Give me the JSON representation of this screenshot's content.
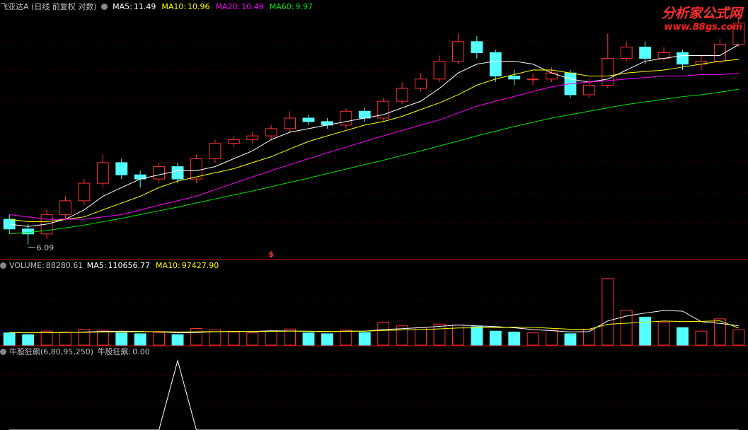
{
  "watermark": {
    "brand": "分析家公式网",
    "url": "www.88gs.com"
  },
  "chart_data": [
    {
      "type": "candlestick",
      "title": "飞亚达A (日线 前复权 对数)",
      "log_scale": true,
      "ylim": [
        5.9,
        12.6
      ],
      "up_color": "#ff3232",
      "down_color": "#54ffff",
      "marker": "$",
      "marker_index": 14,
      "low_label": 6.09,
      "low_index": 1,
      "open": [
        6.6,
        6.4,
        6.3,
        6.7,
        7.0,
        7.4,
        7.9,
        7.6,
        7.5,
        7.8,
        7.5,
        8.0,
        8.4,
        8.5,
        8.6,
        8.8,
        9.1,
        9.0,
        8.9,
        9.3,
        9.1,
        9.6,
        10.0,
        10.3,
        10.9,
        11.6,
        11.2,
        10.4,
        10.3,
        10.3,
        10.5,
        9.8,
        10.1,
        11.0,
        11.4,
        11.0,
        11.2,
        10.8,
        10.9,
        11.5
      ],
      "high": [
        6.7,
        6.5,
        6.8,
        7.1,
        7.5,
        8.1,
        8.0,
        7.7,
        7.9,
        7.9,
        8.1,
        8.5,
        8.6,
        8.7,
        8.9,
        9.3,
        9.2,
        9.1,
        9.4,
        9.4,
        9.7,
        10.2,
        10.5,
        11.1,
        11.9,
        11.8,
        11.3,
        10.6,
        10.5,
        10.7,
        10.6,
        10.3,
        11.9,
        11.6,
        11.6,
        11.4,
        11.3,
        11.1,
        11.7,
        12.6
      ],
      "low": [
        6.3,
        6.09,
        6.2,
        6.6,
        6.9,
        7.3,
        7.5,
        7.3,
        7.4,
        7.4,
        7.4,
        7.9,
        8.3,
        8.4,
        8.5,
        8.7,
        8.9,
        8.8,
        8.8,
        9.0,
        9.0,
        9.5,
        9.9,
        10.2,
        10.8,
        11.0,
        10.2,
        10.1,
        10.1,
        10.2,
        9.7,
        9.7,
        10.0,
        10.9,
        10.8,
        10.9,
        10.6,
        10.6,
        10.8,
        11.4
      ],
      "close": [
        6.4,
        6.3,
        6.7,
        7.0,
        7.4,
        7.9,
        7.6,
        7.5,
        7.8,
        7.5,
        8.0,
        8.4,
        8.5,
        8.6,
        8.8,
        9.1,
        9.0,
        8.9,
        9.3,
        9.1,
        9.6,
        10.0,
        10.3,
        10.9,
        11.6,
        11.2,
        10.4,
        10.3,
        10.3,
        10.5,
        9.8,
        10.1,
        11.0,
        11.4,
        11.0,
        11.2,
        10.8,
        10.9,
        11.5,
        12.3
      ],
      "series": [
        {
          "label": "MA5:",
          "current": 11.49,
          "color": "#ffffff",
          "values": [
            6.5,
            6.45,
            6.5,
            6.6,
            6.8,
            7.1,
            7.3,
            7.5,
            7.6,
            7.7,
            7.7,
            7.8,
            8.0,
            8.2,
            8.5,
            8.7,
            8.8,
            8.9,
            9.0,
            9.1,
            9.2,
            9.4,
            9.6,
            10.0,
            10.5,
            10.8,
            10.9,
            10.9,
            10.8,
            10.5,
            10.3,
            10.2,
            10.3,
            10.6,
            10.9,
            11.0,
            11.1,
            11.1,
            11.1,
            11.49
          ]
        },
        {
          "label": "MA10:",
          "current": 10.96,
          "color": "#ffff00",
          "values": [
            6.6,
            6.55,
            6.55,
            6.6,
            6.65,
            6.8,
            6.95,
            7.1,
            7.3,
            7.45,
            7.55,
            7.65,
            7.75,
            7.9,
            8.05,
            8.25,
            8.45,
            8.6,
            8.75,
            8.9,
            9.0,
            9.15,
            9.35,
            9.55,
            9.8,
            10.1,
            10.3,
            10.45,
            10.6,
            10.6,
            10.5,
            10.4,
            10.4,
            10.5,
            10.55,
            10.6,
            10.7,
            10.8,
            10.9,
            10.96
          ]
        },
        {
          "label": "MA20:",
          "current": 10.49,
          "color": "#ff00ff",
          "values": [
            6.7,
            6.65,
            6.6,
            6.6,
            6.6,
            6.65,
            6.7,
            6.8,
            6.9,
            7.0,
            7.1,
            7.25,
            7.4,
            7.55,
            7.7,
            7.85,
            8.0,
            8.15,
            8.3,
            8.45,
            8.6,
            8.75,
            8.9,
            9.05,
            9.25,
            9.45,
            9.6,
            9.75,
            9.9,
            10.05,
            10.15,
            10.2,
            10.25,
            10.3,
            10.35,
            10.4,
            10.4,
            10.45,
            10.45,
            10.49
          ]
        },
        {
          "label": "MA60:",
          "current": 9.97,
          "color": "#00e600",
          "values": [
            6.3,
            6.33,
            6.37,
            6.42,
            6.48,
            6.55,
            6.62,
            6.7,
            6.78,
            6.86,
            6.95,
            7.04,
            7.13,
            7.22,
            7.32,
            7.42,
            7.52,
            7.63,
            7.74,
            7.85,
            7.96,
            8.08,
            8.2,
            8.33,
            8.46,
            8.6,
            8.73,
            8.86,
            8.98,
            9.1,
            9.2,
            9.3,
            9.4,
            9.5,
            9.58,
            9.66,
            9.74,
            9.8,
            9.88,
            9.97
          ]
        }
      ]
    },
    {
      "type": "volume",
      "label": "VOLUME:",
      "current": 88280.61,
      "ylim": [
        0,
        420000
      ],
      "values": [
        70000,
        60000,
        80000,
        75000,
        90000,
        85000,
        70000,
        65000,
        72000,
        60000,
        95000,
        88000,
        75000,
        70000,
        80000,
        92000,
        70000,
        65000,
        85000,
        72000,
        130000,
        110000,
        100000,
        120000,
        115000,
        105000,
        80000,
        75000,
        70000,
        85000,
        65000,
        90000,
        380000,
        200000,
        160000,
        130000,
        100000,
        80000,
        150000,
        88280.61
      ],
      "series": [
        {
          "label": "MA5:",
          "current": 110656.77,
          "color": "#ffffff",
          "values": [
            72000,
            70000,
            71000,
            72000,
            75000,
            78000,
            80000,
            78000,
            76000,
            70000,
            72000,
            76000,
            78000,
            78000,
            82000,
            81000,
            79000,
            76000,
            80000,
            80000,
            89000,
            94000,
            100000,
            107000,
            115000,
            110000,
            106000,
            99000,
            89000,
            83000,
            75000,
            77000,
            138000,
            166000,
            183000,
            198000,
            194000,
            134000,
            124000,
            110656.77
          ]
        },
        {
          "label": "MA10:",
          "current": 97427.9,
          "value_label": "97427.90",
          "color": "#ffff00",
          "values": [
            72000,
            71000,
            71000,
            72000,
            73000,
            75000,
            76000,
            76000,
            77000,
            75000,
            76000,
            77000,
            78000,
            77000,
            78000,
            80000,
            80000,
            78000,
            79000,
            80000,
            84000,
            87000,
            89000,
            93000,
            98000,
            99000,
            100000,
            103000,
            102000,
            96000,
            91000,
            91000,
            119000,
            125000,
            131000,
            138000,
            135000,
            136000,
            139000,
            97427.9
          ]
        }
      ]
    },
    {
      "type": "signal",
      "label": "牛股狂飙(6,80,95,250)",
      "name": "牛股狂飙:",
      "current": 0,
      "value_label": "0.00",
      "color": "#ffffff",
      "ylim": [
        0,
        110
      ],
      "values": [
        0,
        0,
        0,
        0,
        0,
        0,
        0,
        0,
        0,
        100,
        0,
        0,
        0,
        0,
        0,
        0,
        0,
        0,
        0,
        0,
        0,
        0,
        0,
        0,
        0,
        0,
        0,
        0,
        0,
        0,
        0,
        0,
        0,
        0,
        0,
        0,
        0,
        0,
        0,
        0
      ]
    }
  ]
}
